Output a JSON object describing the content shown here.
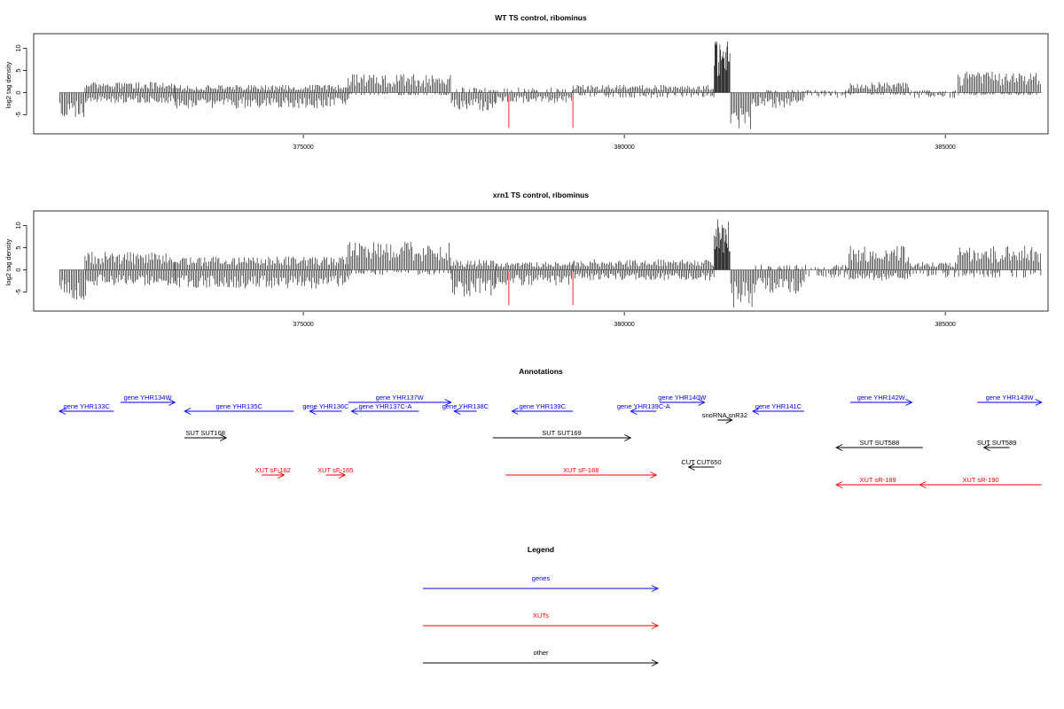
{
  "panels": [
    {
      "title": "WT TS control, ribominus",
      "ylabel": "log2 tag density",
      "yticks": [
        "-5",
        "0",
        "5",
        "10"
      ]
    },
    {
      "title": "xrn1 TS control, ribominus",
      "ylabel": "log2 tag density",
      "yticks": [
        "-5",
        "0",
        "5",
        "10"
      ]
    }
  ],
  "xticks": [
    "375000",
    "380000",
    "385000"
  ],
  "annotations": {
    "title": "Annotations",
    "features": [
      {
        "label": "gene YHR133C",
        "type": "gene",
        "strand": "-",
        "start": 371200,
        "end": 372050
      },
      {
        "label": "gene YHR134W",
        "type": "gene",
        "strand": "+",
        "start": 372150,
        "end": 373000
      },
      {
        "label": "gene YHR135C",
        "type": "gene",
        "strand": "-",
        "start": 373150,
        "end": 374850
      },
      {
        "label": "gene YHR136C",
        "type": "gene",
        "strand": "-",
        "start": 375100,
        "end": 375600
      },
      {
        "label": "gene YHR137W",
        "type": "gene",
        "strand": "+",
        "start": 375700,
        "end": 377300
      },
      {
        "label": "gene YHR137C-A",
        "type": "gene",
        "strand": "-",
        "start": 375750,
        "end": 376800
      },
      {
        "label": "gene YHR138C",
        "type": "gene",
        "strand": "-",
        "start": 377350,
        "end": 377700
      },
      {
        "label": "gene YHR139C",
        "type": "gene",
        "strand": "-",
        "start": 378250,
        "end": 379200
      },
      {
        "label": "gene YHR139C-A",
        "type": "gene",
        "strand": "-",
        "start": 380100,
        "end": 380500
      },
      {
        "label": "gene YHR140W",
        "type": "gene",
        "strand": "+",
        "start": 380550,
        "end": 381250
      },
      {
        "label": "gene YHR141C",
        "type": "gene",
        "strand": "-",
        "start": 382000,
        "end": 382800
      },
      {
        "label": "gene YHR142W",
        "type": "gene",
        "strand": "+",
        "start": 383520,
        "end": 384480
      },
      {
        "label": "gene YHR143W",
        "type": "gene",
        "strand": "+",
        "start": 385500,
        "end": 386500
      },
      {
        "label": "snoRNA snR32",
        "type": "other",
        "strand": "+",
        "start": 381450,
        "end": 381680
      },
      {
        "label": "SUT SUT168",
        "type": "other",
        "strand": "+",
        "start": 373150,
        "end": 373800
      },
      {
        "label": "SUT SUT169",
        "type": "other",
        "strand": "+",
        "start": 377950,
        "end": 380100
      },
      {
        "label": "CUT CUT650",
        "type": "other",
        "strand": "-",
        "start": 381000,
        "end": 381400
      },
      {
        "label": "SUT SUT588",
        "type": "other",
        "strand": "-",
        "start": 383300,
        "end": 384650
      },
      {
        "label": "SUT SUT589",
        "type": "other",
        "strand": "-",
        "start": 385600,
        "end": 386000
      },
      {
        "label": "XUT sF-162",
        "type": "xut",
        "strand": "+",
        "start": 374350,
        "end": 374700
      },
      {
        "label": "XUT sF-165",
        "type": "xut",
        "strand": "+",
        "start": 375350,
        "end": 375650
      },
      {
        "label": "XUT sF-168",
        "type": "xut",
        "strand": "+",
        "start": 378150,
        "end": 380500
      },
      {
        "label": "XUT sR-189",
        "type": "xut",
        "strand": "-",
        "start": 383300,
        "end": 384600
      },
      {
        "label": "XUT sR-190",
        "type": "xut",
        "strand": "-",
        "start": 384600,
        "end": 386500
      }
    ]
  },
  "legend": {
    "title": "Legend",
    "items": [
      {
        "label": "genes",
        "type": "gene"
      },
      {
        "label": "XUTs",
        "type": "xut"
      },
      {
        "label": "other",
        "type": "other"
      }
    ]
  },
  "colors": {
    "gene": "#0000ff",
    "xut": "#ff0000",
    "other": "#000000",
    "marker": "#ff6666",
    "baseline": "#9a9a9a"
  },
  "chart_data": [
    {
      "type": "bar",
      "title": "WT TS control, ribominus",
      "ylabel": "log2 tag density",
      "xlim": [
        370800,
        386600
      ],
      "ylim": [
        -8.5,
        12.5
      ],
      "red_markers_x": [
        378200,
        379200
      ],
      "segments": [
        {
          "start": 371200,
          "end": 371600,
          "sense": 0,
          "anti": -5
        },
        {
          "start": 371600,
          "end": 373000,
          "sense": 2,
          "anti": -2
        },
        {
          "start": 373000,
          "end": 375700,
          "sense": 1.5,
          "anti": -3
        },
        {
          "start": 375700,
          "end": 377300,
          "sense": 3.5,
          "anti": -0.5
        },
        {
          "start": 377300,
          "end": 378000,
          "sense": 1,
          "anti": -3.5
        },
        {
          "start": 378000,
          "end": 379200,
          "sense": 1,
          "anti": -2
        },
        {
          "start": 379200,
          "end": 381400,
          "sense": 1.5,
          "anti": -1
        },
        {
          "start": 381400,
          "end": 381650,
          "sense": 10,
          "anti": 0
        },
        {
          "start": 381650,
          "end": 382000,
          "sense": 0,
          "anti": -7
        },
        {
          "start": 382000,
          "end": 382800,
          "sense": 0.5,
          "anti": -3
        },
        {
          "start": 382800,
          "end": 383500,
          "sense": 0.5,
          "anti": -1
        },
        {
          "start": 383500,
          "end": 384450,
          "sense": 2,
          "anti": -0.5
        },
        {
          "start": 384450,
          "end": 385200,
          "sense": 0.5,
          "anti": -1
        },
        {
          "start": 385200,
          "end": 386500,
          "sense": 4,
          "anti": -0.5
        }
      ]
    },
    {
      "type": "bar",
      "title": "xrn1 TS control, ribominus",
      "ylabel": "log2 tag density",
      "xlim": [
        370800,
        386600
      ],
      "ylim": [
        -8.5,
        12.5
      ],
      "red_markers_x": [
        378200,
        379200
      ],
      "segments": [
        {
          "start": 371200,
          "end": 371600,
          "sense": 0,
          "anti": -6
        },
        {
          "start": 371600,
          "end": 373000,
          "sense": 3.5,
          "anti": -3
        },
        {
          "start": 373000,
          "end": 375700,
          "sense": 2.5,
          "anti": -3.5
        },
        {
          "start": 375700,
          "end": 377300,
          "sense": 5.5,
          "anti": -1
        },
        {
          "start": 377300,
          "end": 378000,
          "sense": 2,
          "anti": -5
        },
        {
          "start": 378000,
          "end": 379200,
          "sense": 1.5,
          "anti": -3
        },
        {
          "start": 379200,
          "end": 381400,
          "sense": 2,
          "anti": -2
        },
        {
          "start": 381400,
          "end": 381650,
          "sense": 10,
          "anti": 0
        },
        {
          "start": 381650,
          "end": 382000,
          "sense": 0,
          "anti": -7.5
        },
        {
          "start": 382000,
          "end": 382800,
          "sense": 1,
          "anti": -4.5
        },
        {
          "start": 382800,
          "end": 383500,
          "sense": 1,
          "anti": -1.5
        },
        {
          "start": 383500,
          "end": 384450,
          "sense": 4.5,
          "anti": -2
        },
        {
          "start": 384450,
          "end": 385200,
          "sense": 1.5,
          "anti": -1.5
        },
        {
          "start": 385200,
          "end": 386500,
          "sense": 4.5,
          "anti": -1.5
        }
      ]
    }
  ]
}
